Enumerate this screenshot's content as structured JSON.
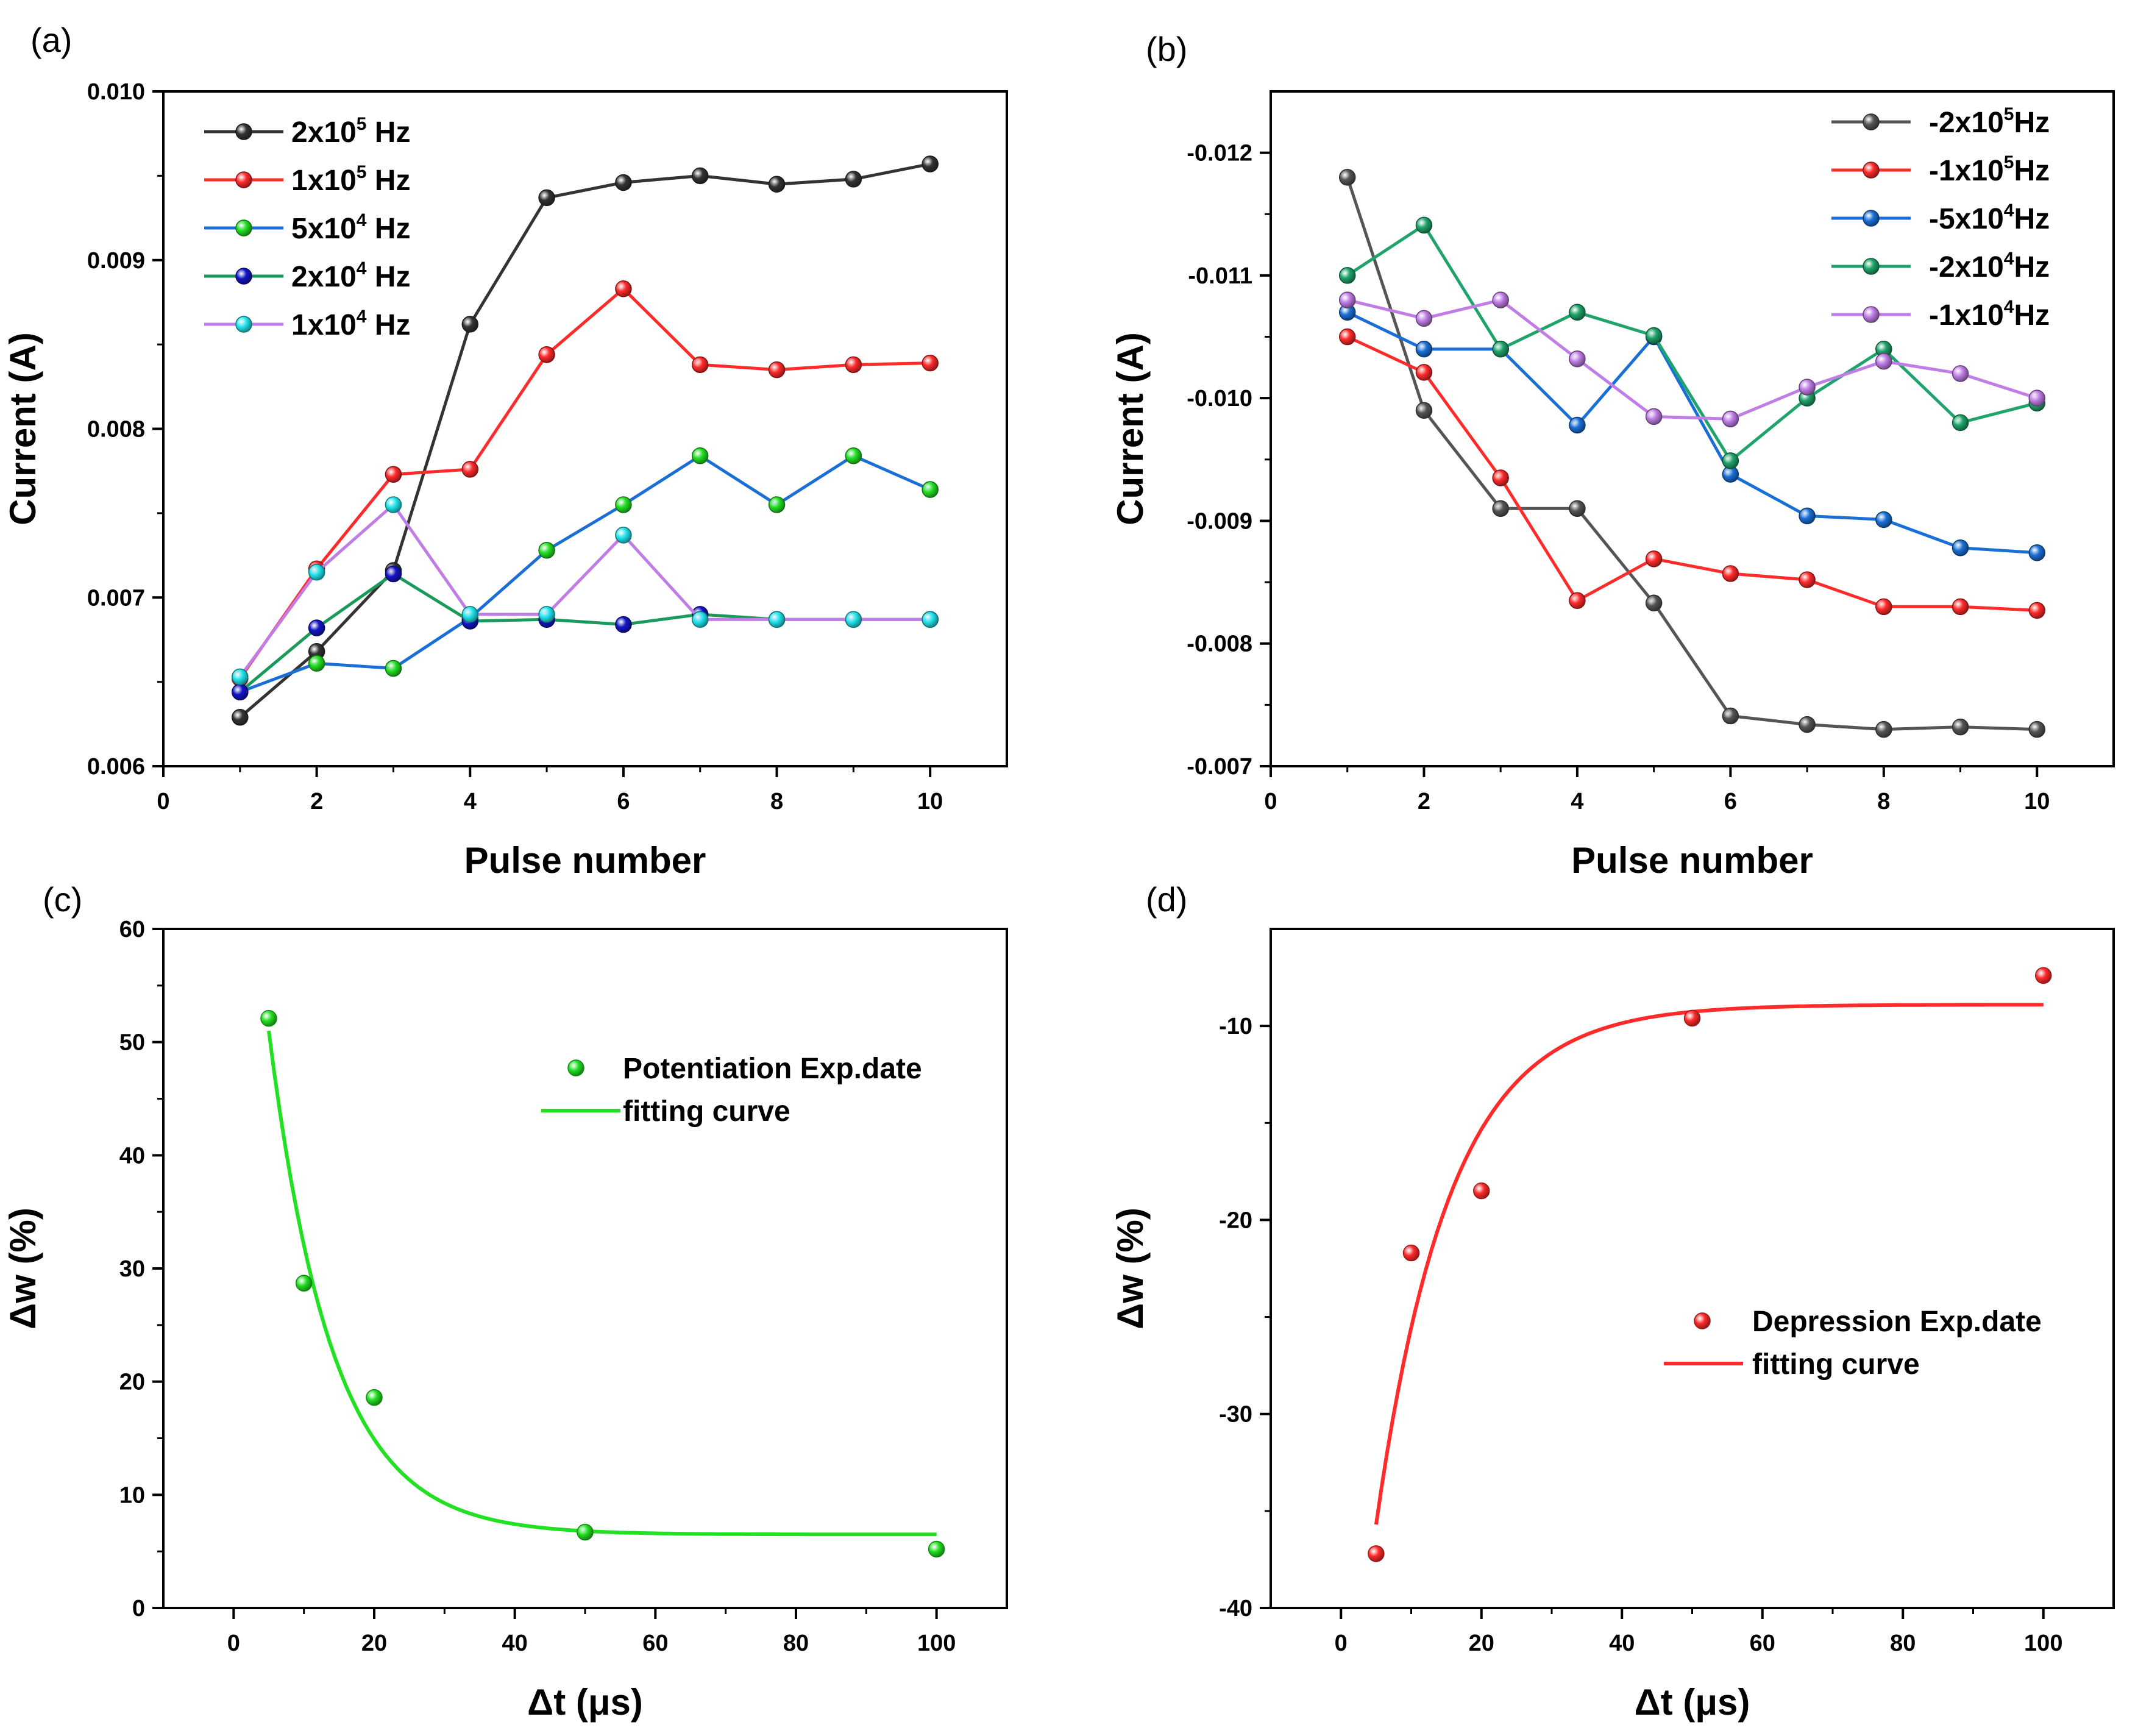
{
  "figure": {
    "colors": {
      "black": "#333333",
      "red": "#ff2a2a",
      "blue": "#1a6fd6",
      "green": "#22e022",
      "teal": "#1a9a5a",
      "navy": "#1414c8",
      "cyan": "#22e6ee",
      "violet": "#c07de6",
      "tealb": "#1ea36a"
    }
  },
  "chart_data": [
    {
      "id": "a",
      "panel_label": "(a)",
      "type": "line",
      "xlabel": "Pulse number",
      "ylabel": "Current (A)",
      "xlim": [
        0,
        11
      ],
      "ylim": [
        0.006,
        0.01
      ],
      "xticks": [
        "0",
        "2",
        "4",
        "6",
        "8",
        "10"
      ],
      "xtick_values": [
        0,
        2,
        4,
        6,
        8,
        10
      ],
      "yticks": [
        "0.006",
        "0.007",
        "0.008",
        "0.009",
        "0.010"
      ],
      "ytick_values": [
        0.006,
        0.007,
        0.008,
        0.009,
        0.01
      ],
      "legend_position": "top-left",
      "x": [
        1,
        2,
        3,
        4,
        5,
        6,
        7,
        8,
        9,
        10
      ],
      "series": [
        {
          "name": "2x10",
          "sup": "5",
          "unit": " Hz",
          "color": "#333333",
          "values": [
            0.00629,
            0.00668,
            0.00716,
            0.00862,
            0.00937,
            0.00946,
            0.0095,
            0.00945,
            0.00948,
            0.00957
          ]
        },
        {
          "name": "1x10",
          "sup": "5",
          "unit": " Hz",
          "color": "#ff2a2a",
          "values": [
            0.00652,
            0.00717,
            0.00773,
            0.00776,
            0.00844,
            0.00883,
            0.00838,
            0.00835,
            0.00838,
            0.00839
          ]
        },
        {
          "name": "5x10",
          "sup": "4",
          "unit": " Hz",
          "color": "#1a6fd6",
          "marker": "#22e022",
          "values": [
            0.00644,
            0.00661,
            0.00658,
            0.00688,
            0.00728,
            0.00755,
            0.00784,
            0.00755,
            0.00784,
            0.00764
          ]
        },
        {
          "name": "2x10",
          "sup": "4",
          "unit": " Hz",
          "color": "#1a9a5a",
          "marker": "#1414c8",
          "values": [
            0.00644,
            0.00682,
            0.00714,
            0.00686,
            0.00687,
            0.00684,
            0.0069,
            0.00687,
            0.00687,
            0.00687
          ]
        },
        {
          "name": "1x10",
          "sup": "4",
          "unit": " Hz",
          "color": "#c07de6",
          "marker": "#22e6ee",
          "values": [
            0.00653,
            0.00715,
            0.00755,
            0.0069,
            0.0069,
            0.00737,
            0.00687,
            0.00687,
            0.00687,
            0.00687
          ]
        }
      ]
    },
    {
      "id": "b",
      "panel_label": "(b)",
      "type": "line",
      "xlabel": "Pulse number",
      "ylabel": "Current (A)",
      "xlim": [
        0,
        11
      ],
      "ylim": [
        -0.007,
        -0.0125
      ],
      "xticks": [
        "0",
        "2",
        "4",
        "6",
        "8",
        "10"
      ],
      "xtick_values": [
        0,
        2,
        4,
        6,
        8,
        10
      ],
      "yticks": [
        "-0.007",
        "-0.008",
        "-0.009",
        "-0.010",
        "-0.011",
        "-0.012"
      ],
      "ytick_values": [
        -0.007,
        -0.008,
        -0.009,
        -0.01,
        -0.011,
        -0.012
      ],
      "legend_position": "top-right",
      "x": [
        1,
        2,
        3,
        4,
        5,
        6,
        7,
        8,
        9,
        10
      ],
      "series": [
        {
          "name": "-2x10",
          "sup": "5",
          "unit": "Hz",
          "color": "#555555",
          "values": [
            -0.0118,
            -0.0099,
            -0.0091,
            -0.0091,
            -0.00833,
            -0.00741,
            -0.00734,
            -0.0073,
            -0.00732,
            -0.0073
          ]
        },
        {
          "name": "-1x10",
          "sup": "5",
          "unit": "Hz",
          "color": "#ff2a2a",
          "values": [
            -0.0105,
            -0.01021,
            -0.00935,
            -0.00835,
            -0.00869,
            -0.00857,
            -0.00852,
            -0.0083,
            -0.0083,
            -0.00827
          ]
        },
        {
          "name": "-5x10",
          "sup": "4",
          "unit": "Hz",
          "color": "#1a6fd6",
          "values": [
            -0.0107,
            -0.0104,
            -0.0104,
            -0.00978,
            -0.0105,
            -0.00938,
            -0.00904,
            -0.00901,
            -0.00878,
            -0.00874
          ]
        },
        {
          "name": "-2x10",
          "sup": "4",
          "unit": "Hz",
          "color": "#1ea36a",
          "values": [
            -0.011,
            -0.01141,
            -0.0104,
            -0.0107,
            -0.01051,
            -0.00949,
            -0.01,
            -0.0104,
            -0.0098,
            -0.00996
          ]
        },
        {
          "name": "-1x10",
          "sup": "4",
          "unit": "Hz",
          "color": "#c07de6",
          "values": [
            -0.0108,
            -0.01065,
            -0.0108,
            -0.01032,
            -0.00985,
            -0.00983,
            -0.01009,
            -0.0103,
            -0.0102,
            -0.01
          ]
        }
      ]
    },
    {
      "id": "c",
      "panel_label": "(c)",
      "type": "scatter",
      "xlabel": "Δt (μs)",
      "ylabel": "Δw (%)",
      "xlim": [
        -10,
        110
      ],
      "ylim": [
        0,
        60
      ],
      "xticks": [
        "0",
        "20",
        "40",
        "60",
        "80",
        "100"
      ],
      "xtick_values": [
        0,
        20,
        40,
        60,
        80,
        100
      ],
      "yticks": [
        "0",
        "10",
        "20",
        "30",
        "40",
        "50",
        "60"
      ],
      "ytick_values": [
        0,
        10,
        20,
        30,
        40,
        50,
        60
      ],
      "legend_position": "center-right",
      "color": "#22e022",
      "points": {
        "name": "Potentiation Exp.date",
        "x": [
          5,
          10,
          20,
          50,
          100
        ],
        "y": [
          52.1,
          28.7,
          18.6,
          6.7,
          5.2
        ]
      },
      "fit": {
        "name": "fitting curve",
        "model": "exponential",
        "x_start": 5,
        "x_end": 100,
        "y0": 6.5,
        "A": 44.5,
        "tau": 9.0
      }
    },
    {
      "id": "d",
      "panel_label": "(d)",
      "type": "scatter",
      "xlabel": "Δt (μs)",
      "ylabel": "Δw (%)",
      "xlim": [
        -10,
        110
      ],
      "ylim": [
        -40,
        -5
      ],
      "xticks": [
        "0",
        "20",
        "40",
        "60",
        "80",
        "100"
      ],
      "xtick_values": [
        0,
        20,
        40,
        60,
        80,
        100
      ],
      "yticks": [
        "-40",
        "-30",
        "-20",
        "-10"
      ],
      "ytick_values": [
        -40,
        -30,
        -20,
        -10
      ],
      "legend_position": "center-right",
      "color": "#ff2a2a",
      "points": {
        "name": "Depression Exp.date",
        "x": [
          5,
          10,
          20,
          50,
          100
        ],
        "y": [
          -37.2,
          -21.7,
          -18.5,
          -9.6,
          -7.4
        ]
      },
      "fit": {
        "name": "fitting curve",
        "model": "exponential",
        "x_start": 5,
        "x_end": 100,
        "y0": -8.9,
        "A": -26.8,
        "tau": 10.5
      }
    }
  ]
}
